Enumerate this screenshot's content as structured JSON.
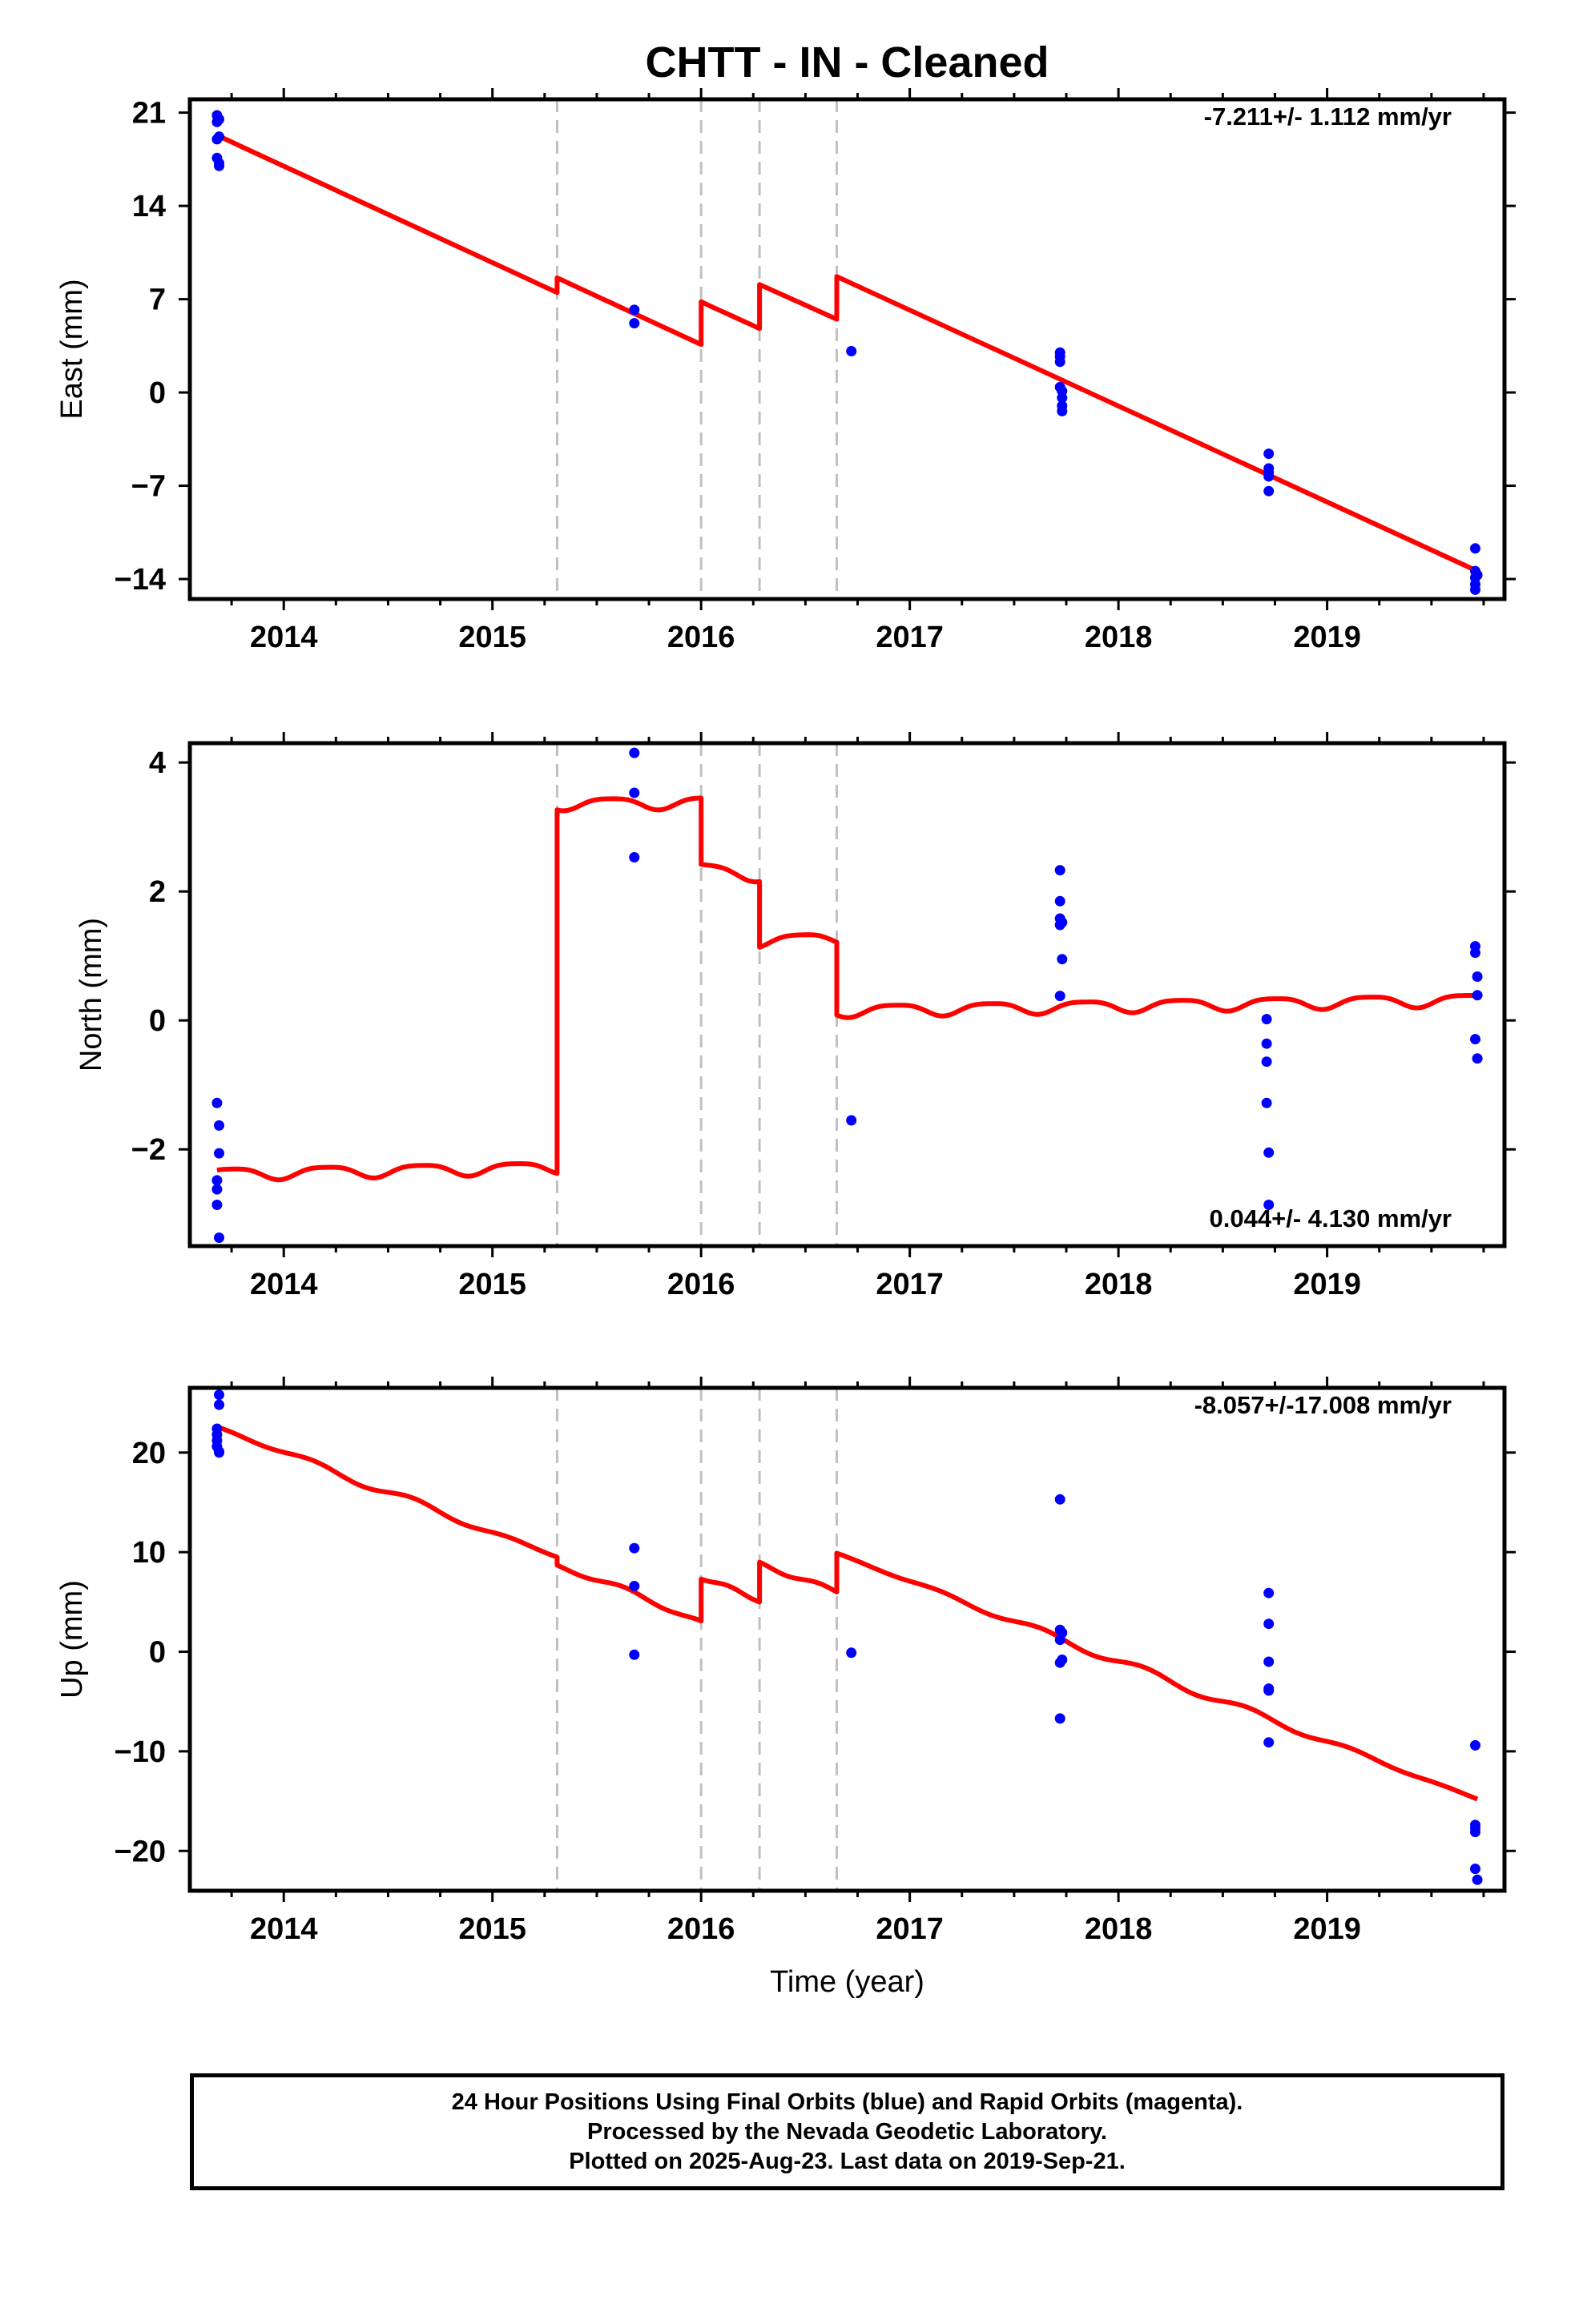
{
  "colors": {
    "points": "#0000ff",
    "model": "#ff0000",
    "steps": "#c0c0c0",
    "frame": "#000000"
  },
  "chart_data": [
    {
      "type": "scatter",
      "title": "CHTT  - IN - Cleaned",
      "xlabel": "",
      "ylabel": "East (mm)",
      "xlim": [
        2013.55,
        2019.85
      ],
      "ylim": [
        -15.5,
        22.0
      ],
      "xticks": [
        2014,
        2015,
        2016,
        2017,
        2018,
        2019
      ],
      "xtick_labels": [
        "2014",
        "2015",
        "2016",
        "2017",
        "2018",
        "2019"
      ],
      "yticks": [
        21,
        14,
        7,
        0,
        -7,
        -14
      ],
      "ytick_labels": [
        "21",
        "14",
        "7",
        "0",
        "−7",
        "−14"
      ],
      "rate_label": "-7.211+/- 1.112 mm/yr",
      "rate_position": "top-right",
      "step_epochs": [
        2015.31,
        2016.0,
        2016.28,
        2016.65
      ],
      "series": [
        {
          "kind": "points",
          "x": [
            2013.68,
            2013.68,
            2013.68,
            2013.68,
            2013.69,
            2013.69,
            2013.69,
            2013.69,
            2015.68,
            2015.68,
            2016.72,
            2017.72,
            2017.72,
            2017.72,
            2017.72,
            2017.73,
            2017.73,
            2017.73,
            2017.73,
            2018.72,
            2018.72,
            2018.72,
            2018.72,
            2018.72,
            2019.71,
            2019.71,
            2019.71,
            2019.71,
            2019.71,
            2019.72
          ],
          "y": [
            20.8,
            20.3,
            19.0,
            17.6,
            17.2,
            20.5,
            19.2,
            17.0,
            6.2,
            5.2,
            3.1,
            3.0,
            2.7,
            2.3,
            0.4,
            0.1,
            -0.4,
            -1.0,
            -1.4,
            -4.6,
            -5.7,
            -6.0,
            -6.3,
            -7.4,
            -11.7,
            -13.4,
            -13.9,
            -14.4,
            -14.8,
            -13.7
          ]
        },
        {
          "kind": "model",
          "x": [
            2013.68,
            2015.31,
            2015.31,
            2016.0,
            2016.0,
            2016.28,
            2016.28,
            2016.65,
            2016.65,
            2019.72
          ],
          "y": [
            19.3,
            7.5,
            8.6,
            3.6,
            6.8,
            4.8,
            8.1,
            5.5,
            8.7,
            -13.4
          ]
        }
      ]
    },
    {
      "type": "scatter",
      "title": "",
      "xlabel": "",
      "ylabel": "North (mm)",
      "xlim": [
        2013.55,
        2019.85
      ],
      "ylim": [
        -3.5,
        4.3
      ],
      "xticks": [
        2014,
        2015,
        2016,
        2017,
        2018,
        2019
      ],
      "xtick_labels": [
        "2014",
        "2015",
        "2016",
        "2017",
        "2018",
        "2019"
      ],
      "yticks": [
        4,
        2,
        0,
        -2
      ],
      "ytick_labels": [
        "4",
        "2",
        "0",
        "−2"
      ],
      "rate_label": "0.044+/- 4.130 mm/yr",
      "rate_position": "bottom-right",
      "step_epochs": [
        2015.31,
        2016.0,
        2016.28,
        2016.65
      ],
      "series": [
        {
          "kind": "points",
          "x": [
            2013.68,
            2013.69,
            2013.69,
            2013.68,
            2013.68,
            2013.68,
            2013.69,
            2015.68,
            2015.68,
            2015.68,
            2016.72,
            2017.72,
            2017.72,
            2017.72,
            2017.72,
            2017.73,
            2017.72,
            2017.73,
            2018.71,
            2018.71,
            2018.71,
            2018.71,
            2018.72,
            2018.72,
            2019.71,
            2019.71,
            2019.72,
            2019.72,
            2019.71,
            2019.72
          ],
          "y": [
            -1.28,
            -1.63,
            -2.06,
            -2.48,
            -2.62,
            -2.86,
            -3.37,
            4.15,
            3.53,
            2.53,
            -1.55,
            2.33,
            1.85,
            1.58,
            1.48,
            0.95,
            0.38,
            1.52,
            0.02,
            -0.36,
            -0.64,
            -1.28,
            -2.05,
            -2.86,
            1.15,
            1.05,
            0.68,
            0.39,
            -0.29,
            -0.59
          ]
        },
        {
          "kind": "model",
          "baseline": [
            {
              "x0": 2013.68,
              "x1": 2015.31,
              "y0": -2.38,
              "y1": -2.28
            },
            {
              "x0": 2015.31,
              "x1": 2016.0,
              "y0": 3.36,
              "y1": 3.38
            },
            {
              "x0": 2016.0,
              "x1": 2016.28,
              "y0": 2.35,
              "y1": 2.25
            },
            {
              "x0": 2016.28,
              "x1": 2016.65,
              "y0": 1.23,
              "y1": 1.28
            },
            {
              "x0": 2016.65,
              "x1": 2019.72,
              "y0": 0.15,
              "y1": 0.32
            }
          ],
          "annual_amplitude": 0.09,
          "semiannual_amplitude": 0.02
        }
      ]
    },
    {
      "type": "scatter",
      "title": "",
      "xlabel": "Time (year)",
      "ylabel": "Up (mm)",
      "xlim": [
        2013.55,
        2019.85
      ],
      "ylim": [
        -24.0,
        26.5
      ],
      "xticks": [
        2014,
        2015,
        2016,
        2017,
        2018,
        2019
      ],
      "xtick_labels": [
        "2014",
        "2015",
        "2016",
        "2017",
        "2018",
        "2019"
      ],
      "yticks": [
        20,
        10,
        0,
        -10,
        -20
      ],
      "ytick_labels": [
        "20",
        "10",
        "0",
        "−10",
        "−20"
      ],
      "rate_label": "-8.057+/-17.008 mm/yr",
      "rate_position": "top-right",
      "step_epochs": [
        2015.31,
        2016.0,
        2016.28,
        2016.65
      ],
      "series": [
        {
          "kind": "points",
          "x": [
            2013.69,
            2013.69,
            2013.68,
            2013.68,
            2013.68,
            2013.68,
            2013.69,
            2013.69,
            2015.68,
            2015.68,
            2015.68,
            2016.72,
            2017.72,
            2017.72,
            2017.72,
            2017.73,
            2017.72,
            2017.72,
            2017.73,
            2018.72,
            2018.72,
            2018.72,
            2018.72,
            2018.72,
            2018.72,
            2019.71,
            2019.71,
            2019.71,
            2019.71,
            2019.71,
            2019.72
          ],
          "y": [
            25.8,
            24.8,
            22.4,
            21.8,
            21.2,
            20.6,
            20.1,
            20.0,
            10.4,
            6.6,
            -0.3,
            -0.1,
            15.3,
            2.2,
            1.2,
            -0.8,
            -1.1,
            -6.7,
            1.9,
            5.9,
            2.8,
            -1.0,
            -3.7,
            -3.9,
            -9.1,
            -9.4,
            -17.4,
            -17.7,
            -18.1,
            -21.8,
            -22.9
          ]
        },
        {
          "kind": "model",
          "x": [
            2013.68,
            2015.31,
            2015.31,
            2016.0,
            2016.0,
            2016.28,
            2016.28,
            2016.65,
            2016.65,
            2019.72
          ],
          "y": [
            22.6,
            9.5,
            8.7,
            3.1,
            7.3,
            5.0,
            9.0,
            6.0,
            9.9,
            -14.8
          ],
          "annual_amplitude": 0.4
        }
      ]
    }
  ],
  "footer": {
    "line1": "24 Hour Positions Using Final Orbits (blue) and Rapid Orbits (magenta).",
    "line2": "Processed by the Nevada Geodetic Laboratory.",
    "line3": "Plotted on 2025-Aug-23. Last data on 2019-Sep-21."
  }
}
